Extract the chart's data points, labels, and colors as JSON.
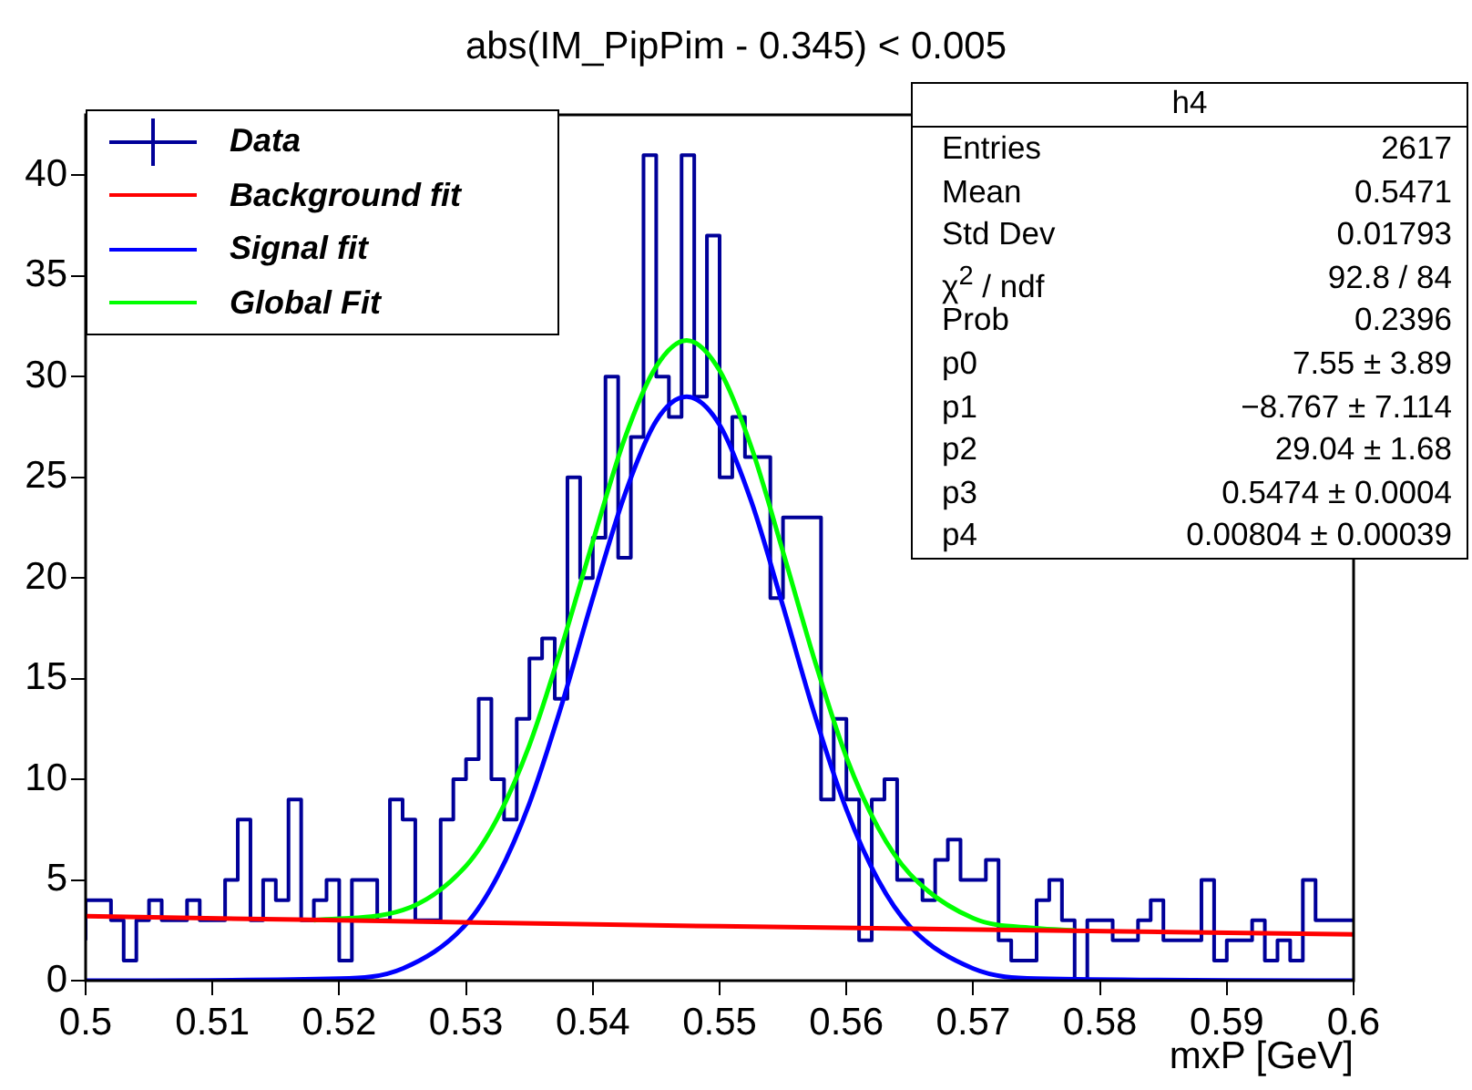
{
  "chart_data": {
    "type": "step",
    "title": "abs(IM_PipPim - 0.345) < 0.005",
    "xlabel": "mxP [GeV]",
    "x": [
      0.5,
      0.501,
      0.502,
      0.503,
      0.504,
      0.505,
      0.506,
      0.507,
      0.508,
      0.509,
      0.51,
      0.511,
      0.512,
      0.513,
      0.514,
      0.515,
      0.516,
      0.517,
      0.518,
      0.519,
      0.52,
      0.521,
      0.522,
      0.523,
      0.524,
      0.525,
      0.526,
      0.527,
      0.528,
      0.529,
      0.53,
      0.531,
      0.532,
      0.533,
      0.534,
      0.535,
      0.536,
      0.537,
      0.538,
      0.539,
      0.54,
      0.541,
      0.542,
      0.543,
      0.544,
      0.545,
      0.546,
      0.547,
      0.548,
      0.549,
      0.55,
      0.551,
      0.552,
      0.553,
      0.554,
      0.555,
      0.556,
      0.557,
      0.558,
      0.559,
      0.56,
      0.561,
      0.562,
      0.563,
      0.564,
      0.565,
      0.566,
      0.567,
      0.568,
      0.569,
      0.57,
      0.571,
      0.572,
      0.573,
      0.574,
      0.575,
      0.576,
      0.577,
      0.578,
      0.579,
      0.58,
      0.581,
      0.582,
      0.583,
      0.584,
      0.585,
      0.586,
      0.587,
      0.588,
      0.589,
      0.59,
      0.591,
      0.592,
      0.593,
      0.594,
      0.595,
      0.596,
      0.597,
      0.598,
      0.599,
      0.6
    ],
    "series": [
      {
        "name": "Data",
        "color": "#000099",
        "values": [
          2,
          4,
          4,
          3,
          1,
          3,
          4,
          3,
          3,
          4,
          3,
          3,
          5,
          8,
          3,
          5,
          4,
          9,
          3,
          4,
          5,
          1,
          5,
          5,
          3,
          9,
          8,
          3,
          3,
          8,
          10,
          11,
          14,
          10,
          8,
          13,
          16,
          17,
          14,
          25,
          20,
          22,
          30,
          21,
          27,
          41,
          30,
          28,
          41,
          29,
          37,
          25,
          28,
          26,
          26,
          19,
          23,
          23,
          23,
          9,
          13,
          9,
          2,
          9,
          10,
          5,
          5,
          4,
          6,
          7,
          5,
          5,
          6,
          2,
          1,
          1,
          4,
          5,
          3,
          0,
          3,
          3,
          2,
          2,
          3,
          4,
          2,
          2,
          2,
          5,
          1,
          2,
          2,
          3,
          1,
          2,
          1,
          5,
          3,
          3,
          3
        ]
      },
      {
        "name": "Background fit",
        "type": "line",
        "color": "#ff0000",
        "x": [
          0.5,
          0.55,
          0.6
        ],
        "values": [
          3.2,
          2.7,
          2.3
        ]
      },
      {
        "name": "Signal fit",
        "type": "line",
        "color": "#0000ff",
        "x": [
          0.5,
          0.52,
          0.525,
          0.53,
          0.5325,
          0.535,
          0.5375,
          0.54,
          0.5425,
          0.545,
          0.5474,
          0.55,
          0.5525,
          0.555,
          0.5575,
          0.56,
          0.5625,
          0.565,
          0.57,
          0.575,
          0.6
        ],
        "values": [
          0,
          0.1,
          0.6,
          2.8,
          5.2,
          8.8,
          13.6,
          19.0,
          24.1,
          27.8,
          29.0,
          27.6,
          23.8,
          18.6,
          13.2,
          8.5,
          5.0,
          2.7,
          0.6,
          0.1,
          0
        ]
      },
      {
        "name": "Global Fit",
        "type": "line",
        "color": "#00ff00",
        "x": [
          0.518,
          0.525,
          0.53,
          0.5325,
          0.535,
          0.5375,
          0.54,
          0.5425,
          0.545,
          0.5474,
          0.55,
          0.5525,
          0.555,
          0.5575,
          0.56,
          0.5625,
          0.565,
          0.57,
          0.575,
          0.578
        ],
        "values": [
          3.0,
          3.5,
          5.7,
          8.1,
          11.7,
          16.5,
          21.8,
          26.9,
          30.5,
          31.8,
          30.3,
          26.5,
          21.3,
          15.9,
          11.1,
          7.6,
          5.3,
          3.1,
          2.6,
          2.5
        ]
      }
    ],
    "xlim": [
      0.5,
      0.6
    ],
    "xticks": [
      0.5,
      0.51,
      0.52,
      0.53,
      0.54,
      0.55,
      0.56,
      0.57,
      0.58,
      0.59,
      0.6
    ],
    "ylim": [
      0,
      43
    ],
    "yticks": [
      0,
      5,
      10,
      15,
      20,
      25,
      30,
      35,
      40
    ],
    "grid": false,
    "legend": "top left",
    "annotations": [
      "h4",
      "Entries",
      "2617",
      "Mean",
      "0.5471",
      "Std Dev",
      "0.01793",
      "χ$^{2}$ / ndf",
      "92.8 / 84",
      "Prob",
      "0.2396",
      "p0",
      "7.55 ± 3.89",
      "p1",
      "−8.767 ± 7.114",
      "p2",
      "29.04 ± 1.68",
      "p3",
      "0.5474 ± 0.0004",
      "p4",
      "0.00804 ± 0.00039"
    ]
  }
}
